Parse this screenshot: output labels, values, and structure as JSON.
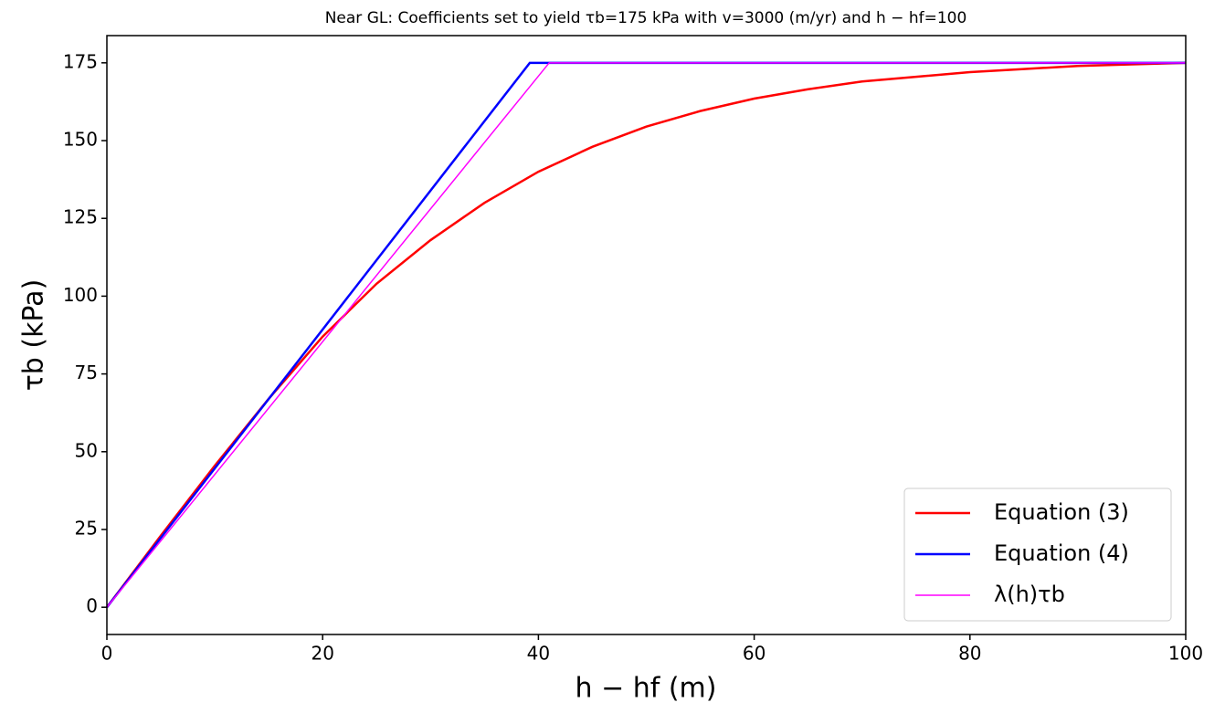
{
  "chart_data": {
    "type": "line",
    "title": "Near GL: Coefficients set to yield τb=175 kPa with v=3000 (m/yr) and h − hf=100",
    "x_label": "h − hf (m)",
    "y_label": "τb (kPa)",
    "xlim": [
      0,
      100
    ],
    "xticks": [
      0,
      20,
      40,
      60,
      80,
      100
    ],
    "ylim": [
      -8.75,
      183.75
    ],
    "yticks": [
      0,
      25,
      50,
      75,
      100,
      125,
      150,
      175
    ],
    "legend": "lower right",
    "series": [
      {
        "name": "Equation (3)",
        "color": "#ff0000",
        "width": 2.5,
        "x": [
          0,
          5,
          10,
          15,
          20,
          25,
          30,
          35,
          40,
          45,
          50,
          55,
          60,
          65,
          70,
          75,
          80,
          85,
          90,
          95,
          100
        ],
        "values": [
          0,
          23,
          45.5,
          67,
          87,
          104,
          118,
          130,
          140,
          148,
          154.5,
          159.5,
          163.5,
          166.5,
          169,
          170.5,
          172,
          173,
          174,
          174.5,
          175
        ]
      },
      {
        "name": "Equation (4)",
        "color": "#0000ff",
        "width": 2.5,
        "x": [
          0,
          39.2,
          100
        ],
        "values": [
          0,
          175,
          175
        ]
      },
      {
        "name": "λ(h)τb",
        "color": "#ff00ff",
        "width": 1.5,
        "x": [
          0,
          41,
          100
        ],
        "values": [
          0,
          175,
          175
        ]
      }
    ]
  }
}
